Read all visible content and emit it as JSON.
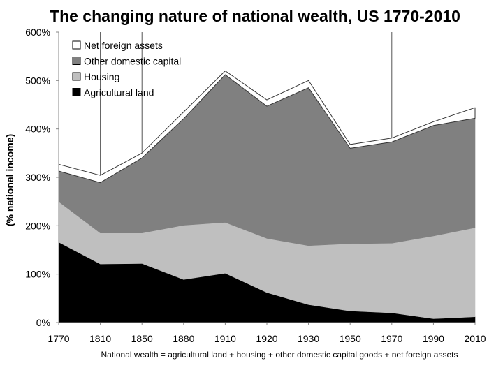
{
  "chart_data": {
    "type": "area",
    "title": "The changing nature of national wealth, US 1770-2010",
    "ylabel": "(% national income)",
    "xlabel": "",
    "note": "National wealth = agricultural land + housing + other domestic capital goods + net foreign assets",
    "stacked": true,
    "ylim": [
      0,
      600
    ],
    "y_ticks": [
      "0%",
      "100%",
      "200%",
      "300%",
      "400%",
      "500%",
      "600%"
    ],
    "categories": [
      "1770",
      "1810",
      "1850",
      "1880",
      "1910",
      "1920",
      "1930",
      "1950",
      "1970",
      "1990",
      "2010"
    ],
    "series": [
      {
        "name": "Agricultural land",
        "color": "#000000",
        "values": [
          166,
          121,
          122,
          89,
          102,
          62,
          37,
          24,
          20,
          8,
          12
        ]
      },
      {
        "name": "Housing",
        "color": "#bfbfbf",
        "values": [
          84,
          64,
          63,
          112,
          105,
          112,
          122,
          139,
          144,
          171,
          184
        ]
      },
      {
        "name": "Other domestic capital",
        "color": "#808080",
        "values": [
          63,
          104,
          155,
          220,
          305,
          273,
          326,
          197,
          209,
          228,
          226
        ]
      },
      {
        "name": "Net foreign assets",
        "color": "#ffffff",
        "values": [
          14,
          15,
          10,
          14,
          8,
          13,
          15,
          8,
          8,
          8,
          22
        ]
      }
    ],
    "legend": {
      "placement": "top-left",
      "order": [
        "Net foreign assets",
        "Other domestic capital",
        "Housing",
        "Agricultural land"
      ]
    },
    "vertical_reference_lines": [
      "1810",
      "1850",
      "1970"
    ],
    "grid": false
  }
}
